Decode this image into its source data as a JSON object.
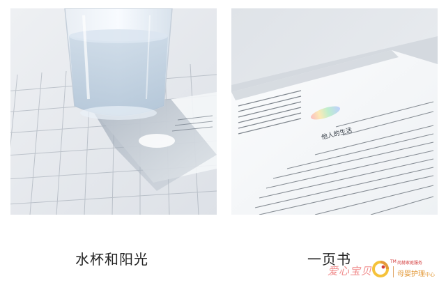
{
  "photos": [
    {
      "caption": "水杯和阳光",
      "description_icon": "glass-of-water-photo"
    },
    {
      "caption": "一页书",
      "description_icon": "open-book-photo"
    }
  ],
  "book": {
    "chapter_heading": "他人的生活"
  },
  "brand": {
    "name_cn": "爱心宝贝",
    "tm": "TM",
    "tagline": "尚赫家庭服务",
    "center_name": "母婴护理",
    "center_suffix": "中心",
    "colors": {
      "pink": "#f08a8a",
      "orange": "#e39a3a",
      "red": "#d33b3b",
      "yellow": "#f5c23a"
    }
  }
}
